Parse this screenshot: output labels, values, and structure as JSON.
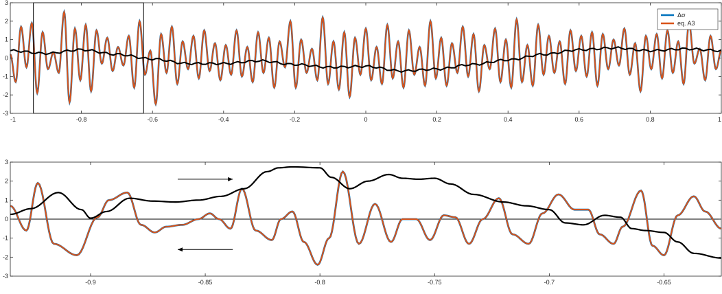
{
  "colors": {
    "series_blue": "#0072BD",
    "series_orange": "#D95319",
    "envelope_black": "#000000",
    "axis_text": "#262626",
    "axis_line": "#262626"
  },
  "chart_data": [
    {
      "type": "line",
      "xlim": [
        -1,
        1
      ],
      "ylim": [
        -3,
        3
      ],
      "xticks": [
        -1,
        -0.8,
        -0.6,
        -0.4,
        -0.2,
        0,
        0.2,
        0.4,
        0.6,
        0.8,
        1
      ],
      "xtick_labels": [
        "-1",
        "-0.8",
        "-0.6",
        "-0.4",
        "-0.2",
        "0",
        "0.2",
        "0.4",
        "0.6",
        "0.8",
        "1"
      ],
      "yticks": [
        -3,
        -2,
        -1,
        0,
        1,
        2,
        3
      ],
      "ytick_labels": [
        "-3",
        "-2",
        "-1",
        "0",
        "1",
        "2",
        "3"
      ],
      "legend": {
        "placement": "top-right",
        "entries": [
          "Δσ",
          "eq. A3"
        ]
      },
      "series": [
        {
          "name": "Δσ",
          "color": "#0072BD",
          "role": "oscillating"
        },
        {
          "name": "eq. A3",
          "color": "#D95319",
          "role": "oscillating"
        },
        {
          "color": "#000000",
          "role": "slow",
          "x": [
            -1,
            -0.9,
            -0.8,
            -0.7,
            -0.6,
            -0.5,
            -0.4,
            -0.3,
            -0.2,
            -0.1,
            0,
            0.1,
            0.2,
            0.3,
            0.4,
            0.5,
            0.6,
            0.7,
            0.8,
            0.9,
            1
          ],
          "y": [
            0.4,
            0.25,
            0.45,
            0.2,
            -0.05,
            -0.3,
            -0.3,
            -0.15,
            -0.35,
            -0.5,
            -0.45,
            -0.7,
            -0.6,
            -0.35,
            -0.1,
            0.2,
            0.45,
            0.55,
            0.4,
            0.5,
            0.4
          ]
        }
      ],
      "zoom_box": {
        "x": [
          -0.935,
          -0.625
        ],
        "y": [
          -3,
          3
        ]
      },
      "oscillation": {
        "x_start": -1,
        "x_end": 1,
        "extrema": [
          0.2,
          -1.3,
          1.7,
          -0.5,
          1.9,
          -1.9,
          1.4,
          -0.6,
          0.3,
          -0.8,
          2.5,
          -2.4,
          1.6,
          -1.2,
          1.8,
          -1.8,
          1.5,
          -0.3,
          1.1,
          -0.7,
          0.6,
          -0.4,
          1.2,
          -1.6,
          2.0,
          -0.9,
          0.4,
          -2.5,
          1.3,
          -0.8,
          1.7,
          -1.4,
          0.9,
          -0.6,
          1.2,
          -1.1,
          1.5,
          -0.7,
          0.8,
          -1.2,
          0.7,
          -0.9,
          1.5,
          -1.0,
          0.6,
          -1.3,
          1.4,
          -0.8,
          1.1,
          -1.6,
          0.9,
          -0.5,
          2.0,
          -1.6,
          1.0,
          -0.8,
          0.5,
          -1.2,
          2.2,
          -1.4,
          0.9,
          -1.7,
          1.4,
          -2.1,
          1.1,
          -0.9,
          1.6,
          -1.2,
          0.6,
          -1.4,
          1.8,
          -1.1,
          0.9,
          -1.6,
          1.5,
          -0.9,
          0.6,
          -1.5,
          2.0,
          -1.1,
          1.1,
          -1.5,
          0.8,
          -0.8,
          1.7,
          -1.0,
          1.3,
          -1.8,
          0.7,
          -0.6,
          1.6,
          -1.3,
          1.0,
          -1.6,
          2.1,
          -1.3,
          0.7,
          -1.5,
          1.8,
          -0.9,
          1.2,
          -0.8,
          0.9,
          -1.4,
          1.5,
          -0.7,
          1.2,
          -1.0,
          1.4,
          -1.5,
          1.3,
          -0.6,
          1.0,
          -0.4,
          1.6,
          -0.9,
          0.8,
          -1.8,
          1.2,
          -0.6,
          1.3,
          -1.1,
          1.5,
          -0.8,
          0.9,
          -1.4,
          1.9,
          -0.3,
          0.5,
          -1.2,
          1.2,
          -0.6,
          0.4
        ]
      }
    },
    {
      "type": "line",
      "xlim": [
        -0.935,
        -0.625
      ],
      "ylim": [
        -3,
        3
      ],
      "xticks": [
        -0.9,
        -0.85,
        -0.8,
        -0.75,
        -0.7,
        -0.65
      ],
      "xtick_labels": [
        "-0.9",
        "-0.85",
        "-0.8",
        "-0.75",
        "-0.7",
        "-0.65"
      ],
      "yticks": [
        -3,
        -2,
        -1,
        0,
        1,
        2,
        3
      ],
      "ytick_labels": [
        "-3",
        "-2",
        "-1",
        "0",
        "1",
        "2",
        "3"
      ],
      "reference_line_y": 0,
      "series": [
        {
          "name": "Δσ",
          "color": "#0072BD",
          "role": "oscillating",
          "x": [
            -0.935,
            -0.928,
            -0.923,
            -0.916,
            -0.906,
            -0.897,
            -0.892,
            -0.884,
            -0.878,
            -0.872,
            -0.867,
            -0.86,
            -0.853,
            -0.848,
            -0.844,
            -0.839,
            -0.834,
            -0.828,
            -0.821,
            -0.817,
            -0.812,
            -0.807,
            -0.801,
            -0.796,
            -0.79,
            -0.783,
            -0.776,
            -0.769,
            -0.764,
            -0.758,
            -0.752,
            -0.746,
            -0.741,
            -0.735,
            -0.729,
            -0.722,
            -0.716,
            -0.709,
            -0.703,
            -0.696,
            -0.689,
            -0.683,
            -0.678,
            -0.672,
            -0.668,
            -0.66,
            -0.655,
            -0.65,
            -0.644,
            -0.637,
            -0.632,
            -0.625
          ],
          "y": [
            0.7,
            -0.6,
            1.9,
            -1.3,
            -1.9,
            0.1,
            1.0,
            1.4,
            -0.3,
            -0.7,
            -0.4,
            -0.3,
            0.0,
            0.3,
            0.0,
            -0.5,
            1.6,
            -0.6,
            -1.1,
            0.0,
            0.4,
            -1.2,
            -2.4,
            -1.0,
            2.5,
            -1.3,
            0.8,
            -1.2,
            0.0,
            0.0,
            -1.1,
            0.2,
            0.1,
            -1.3,
            0.0,
            1.1,
            -0.8,
            -1.3,
            0.3,
            1.3,
            0.5,
            0.5,
            -0.8,
            -1.3,
            -0.4,
            1.5,
            -1.4,
            -1.9,
            0.2,
            1.2,
            0.4,
            -0.5
          ]
        },
        {
          "name": "eq. A3",
          "color": "#D95319",
          "role": "oscillating",
          "same_as": "Δσ"
        },
        {
          "color": "#000000",
          "role": "slow",
          "x": [
            -0.935,
            -0.926,
            -0.914,
            -0.904,
            -0.9,
            -0.893,
            -0.883,
            -0.873,
            -0.863,
            -0.853,
            -0.843,
            -0.833,
            -0.823,
            -0.818,
            -0.812,
            -0.8,
            -0.795,
            -0.787,
            -0.779,
            -0.77,
            -0.764,
            -0.757,
            -0.75,
            -0.743,
            -0.733,
            -0.72,
            -0.71,
            -0.7,
            -0.693,
            -0.685,
            -0.676,
            -0.669,
            -0.664,
            -0.658,
            -0.65,
            -0.644,
            -0.637,
            -0.625
          ],
          "y": [
            0.25,
            0.55,
            1.4,
            0.5,
            0.05,
            0.4,
            1.1,
            0.95,
            0.9,
            1.0,
            1.2,
            1.6,
            2.5,
            2.7,
            2.75,
            2.7,
            2.2,
            1.6,
            2.0,
            2.35,
            2.15,
            2.1,
            2.15,
            1.85,
            1.3,
            0.9,
            0.7,
            0.5,
            -0.2,
            -0.3,
            0.2,
            0.1,
            -0.5,
            -0.6,
            -0.7,
            -1.2,
            -1.8,
            -2.05
          ]
        }
      ],
      "annotations": [
        {
          "type": "arrow",
          "direction": "right",
          "x_from": -0.862,
          "x_to": -0.838,
          "y": 2.1
        },
        {
          "type": "arrow",
          "direction": "left",
          "x_from": -0.838,
          "x_to": -0.862,
          "y": -1.6
        }
      ]
    }
  ]
}
